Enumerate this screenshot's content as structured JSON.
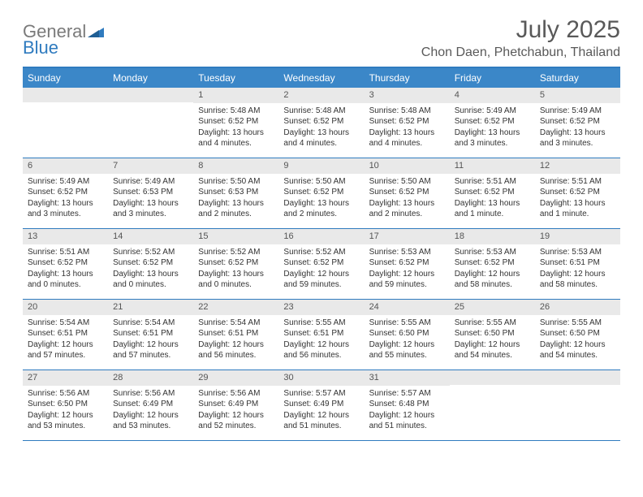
{
  "logo": {
    "word1": "General",
    "word2": "Blue"
  },
  "title": "July 2025",
  "location": "Chon Daen, Phetchabun, Thailand",
  "colors": {
    "header_bg": "#3b87c8",
    "border": "#2f7bbf",
    "daynum_bg": "#e9e9e9",
    "text": "#333333",
    "title_text": "#595959"
  },
  "day_names": [
    "Sunday",
    "Monday",
    "Tuesday",
    "Wednesday",
    "Thursday",
    "Friday",
    "Saturday"
  ],
  "weeks": [
    [
      null,
      null,
      {
        "n": "1",
        "sr": "5:48 AM",
        "ss": "6:52 PM",
        "dl": "13 hours and 4 minutes."
      },
      {
        "n": "2",
        "sr": "5:48 AM",
        "ss": "6:52 PM",
        "dl": "13 hours and 4 minutes."
      },
      {
        "n": "3",
        "sr": "5:48 AM",
        "ss": "6:52 PM",
        "dl": "13 hours and 4 minutes."
      },
      {
        "n": "4",
        "sr": "5:49 AM",
        "ss": "6:52 PM",
        "dl": "13 hours and 3 minutes."
      },
      {
        "n": "5",
        "sr": "5:49 AM",
        "ss": "6:52 PM",
        "dl": "13 hours and 3 minutes."
      }
    ],
    [
      {
        "n": "6",
        "sr": "5:49 AM",
        "ss": "6:52 PM",
        "dl": "13 hours and 3 minutes."
      },
      {
        "n": "7",
        "sr": "5:49 AM",
        "ss": "6:53 PM",
        "dl": "13 hours and 3 minutes."
      },
      {
        "n": "8",
        "sr": "5:50 AM",
        "ss": "6:53 PM",
        "dl": "13 hours and 2 minutes."
      },
      {
        "n": "9",
        "sr": "5:50 AM",
        "ss": "6:52 PM",
        "dl": "13 hours and 2 minutes."
      },
      {
        "n": "10",
        "sr": "5:50 AM",
        "ss": "6:52 PM",
        "dl": "13 hours and 2 minutes."
      },
      {
        "n": "11",
        "sr": "5:51 AM",
        "ss": "6:52 PM",
        "dl": "13 hours and 1 minute."
      },
      {
        "n": "12",
        "sr": "5:51 AM",
        "ss": "6:52 PM",
        "dl": "13 hours and 1 minute."
      }
    ],
    [
      {
        "n": "13",
        "sr": "5:51 AM",
        "ss": "6:52 PM",
        "dl": "13 hours and 0 minutes."
      },
      {
        "n": "14",
        "sr": "5:52 AM",
        "ss": "6:52 PM",
        "dl": "13 hours and 0 minutes."
      },
      {
        "n": "15",
        "sr": "5:52 AM",
        "ss": "6:52 PM",
        "dl": "13 hours and 0 minutes."
      },
      {
        "n": "16",
        "sr": "5:52 AM",
        "ss": "6:52 PM",
        "dl": "12 hours and 59 minutes."
      },
      {
        "n": "17",
        "sr": "5:53 AM",
        "ss": "6:52 PM",
        "dl": "12 hours and 59 minutes."
      },
      {
        "n": "18",
        "sr": "5:53 AM",
        "ss": "6:52 PM",
        "dl": "12 hours and 58 minutes."
      },
      {
        "n": "19",
        "sr": "5:53 AM",
        "ss": "6:51 PM",
        "dl": "12 hours and 58 minutes."
      }
    ],
    [
      {
        "n": "20",
        "sr": "5:54 AM",
        "ss": "6:51 PM",
        "dl": "12 hours and 57 minutes."
      },
      {
        "n": "21",
        "sr": "5:54 AM",
        "ss": "6:51 PM",
        "dl": "12 hours and 57 minutes."
      },
      {
        "n": "22",
        "sr": "5:54 AM",
        "ss": "6:51 PM",
        "dl": "12 hours and 56 minutes."
      },
      {
        "n": "23",
        "sr": "5:55 AM",
        "ss": "6:51 PM",
        "dl": "12 hours and 56 minutes."
      },
      {
        "n": "24",
        "sr": "5:55 AM",
        "ss": "6:50 PM",
        "dl": "12 hours and 55 minutes."
      },
      {
        "n": "25",
        "sr": "5:55 AM",
        "ss": "6:50 PM",
        "dl": "12 hours and 54 minutes."
      },
      {
        "n": "26",
        "sr": "5:55 AM",
        "ss": "6:50 PM",
        "dl": "12 hours and 54 minutes."
      }
    ],
    [
      {
        "n": "27",
        "sr": "5:56 AM",
        "ss": "6:50 PM",
        "dl": "12 hours and 53 minutes."
      },
      {
        "n": "28",
        "sr": "5:56 AM",
        "ss": "6:49 PM",
        "dl": "12 hours and 53 minutes."
      },
      {
        "n": "29",
        "sr": "5:56 AM",
        "ss": "6:49 PM",
        "dl": "12 hours and 52 minutes."
      },
      {
        "n": "30",
        "sr": "5:57 AM",
        "ss": "6:49 PM",
        "dl": "12 hours and 51 minutes."
      },
      {
        "n": "31",
        "sr": "5:57 AM",
        "ss": "6:48 PM",
        "dl": "12 hours and 51 minutes."
      },
      null,
      null
    ]
  ],
  "labels": {
    "sunrise": "Sunrise:",
    "sunset": "Sunset:",
    "daylight": "Daylight:"
  }
}
